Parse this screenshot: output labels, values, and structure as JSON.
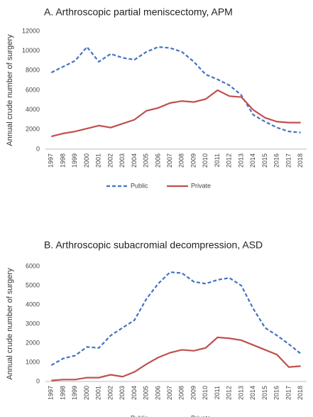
{
  "chart_data": [
    {
      "type": "line",
      "title": "A. Arthroscopic partial meniscectomy, APM",
      "y_label": "Annual crude number of surgery",
      "categories": [
        "1997",
        "1998",
        "1999",
        "2000",
        "2001",
        "2002",
        "2003",
        "2004",
        "2005",
        "2006",
        "2007",
        "2008",
        "2009",
        "2010",
        "2011",
        "2012",
        "2013",
        "2014",
        "2015",
        "2016",
        "2017",
        "2018"
      ],
      "series": [
        {
          "name": "Public",
          "color": "#4472c4",
          "dashed": true,
          "values": [
            7800,
            8400,
            9000,
            10400,
            8900,
            9700,
            9300,
            9100,
            9900,
            10400,
            10300,
            9900,
            8900,
            7600,
            7100,
            6500,
            5500,
            3500,
            2800,
            2200,
            1800,
            1700
          ]
        },
        {
          "name": "Private",
          "color": "#c0504d",
          "dashed": false,
          "values": [
            1300,
            1600,
            1800,
            2100,
            2400,
            2200,
            2600,
            3000,
            3900,
            4200,
            4700,
            4900,
            4800,
            5100,
            6000,
            5400,
            5300,
            4000,
            3200,
            2800,
            2700,
            2700
          ]
        }
      ],
      "ylim": [
        0,
        12000
      ],
      "yticks": [
        0,
        2000,
        4000,
        6000,
        8000,
        10000,
        12000
      ],
      "legend": "bottom"
    },
    {
      "type": "line",
      "title": "B. Arthroscopic subacromial decompression, ASD",
      "y_label": "Annual crude number of surgery",
      "categories": [
        "1997",
        "1998",
        "1999",
        "2000",
        "2001",
        "2002",
        "2003",
        "2004",
        "2005",
        "2006",
        "2007",
        "2008",
        "2009",
        "2010",
        "2011",
        "2012",
        "2013",
        "2014",
        "2015",
        "2016",
        "2017",
        "2018"
      ],
      "series": [
        {
          "name": "Public",
          "color": "#4472c4",
          "dashed": true,
          "values": [
            850,
            1200,
            1350,
            1800,
            1750,
            2400,
            2800,
            3200,
            4300,
            5100,
            5700,
            5650,
            5200,
            5100,
            5300,
            5400,
            5000,
            3800,
            2800,
            2400,
            1950,
            1450
          ]
        },
        {
          "name": "Private",
          "color": "#c0504d",
          "dashed": false,
          "values": [
            50,
            100,
            100,
            200,
            200,
            350,
            250,
            500,
            900,
            1250,
            1500,
            1650,
            1600,
            1750,
            2300,
            2250,
            2150,
            1900,
            1650,
            1400,
            750,
            800
          ]
        }
      ],
      "ylim": [
        0,
        6000
      ],
      "yticks": [
        0,
        1000,
        2000,
        3000,
        4000,
        5000,
        6000
      ],
      "legend": "bottom"
    }
  ]
}
